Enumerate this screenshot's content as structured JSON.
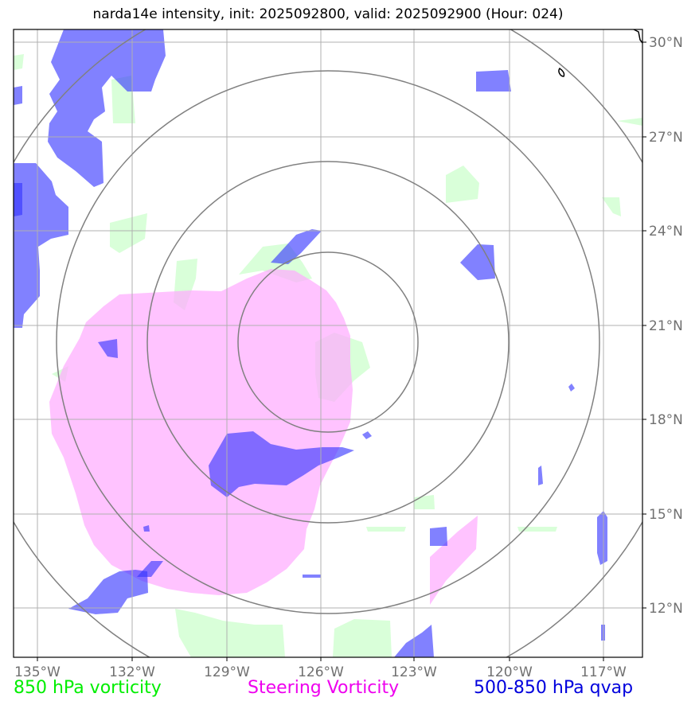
{
  "title": "narda14e intensity, init: 2025092800, valid: 2025092900 (Hour: 024)",
  "map": {
    "lon_ticks": [
      "135°W",
      "132°W",
      "129°W",
      "126°W",
      "123°W",
      "120°W",
      "117°W"
    ],
    "lat_ticks": [
      "30°N",
      "27°N",
      "24°N",
      "21°N",
      "18°N",
      "15°N",
      "12°N"
    ],
    "colors": {
      "vorticity_850": "#ccffcc",
      "steering_vorticity": "#ffaaff",
      "qvap_500_850": "#3333ff",
      "range_rings": "#808080",
      "grid": "#b0b0b0"
    }
  },
  "legend": {
    "vorticity_850": {
      "label": "850 hPa vorticity",
      "color": "#00ee00"
    },
    "steering_vorticity": {
      "label": "Steering Vorticity",
      "color": "#ee00ee"
    },
    "qvap": {
      "label": "500-850 hPa qvap",
      "color": "#0000dd"
    }
  }
}
